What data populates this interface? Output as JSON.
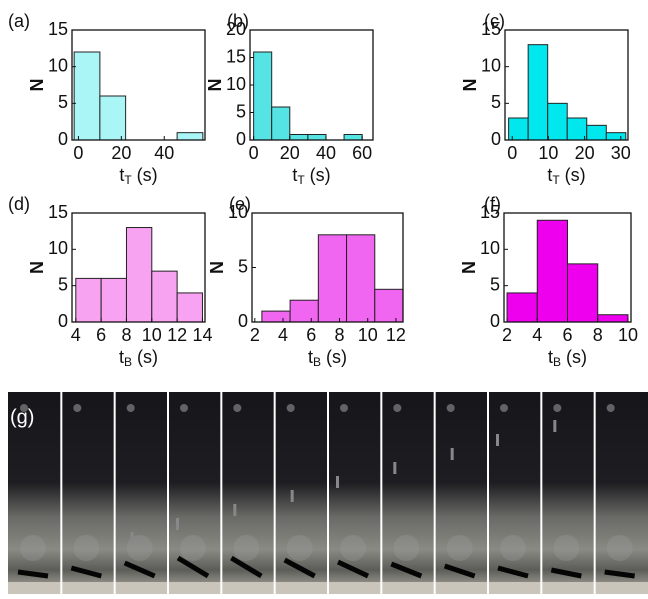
{
  "chart_data": [
    {
      "type": "histogram",
      "panel_label": "(a)",
      "ylabel": "N",
      "xlabel": [
        "t",
        "T",
        " (s)"
      ],
      "color": "#aaf6f6",
      "bins": [
        -2,
        10,
        22,
        34,
        46,
        58
      ],
      "values": [
        12,
        6,
        0,
        0,
        1
      ],
      "xlim": [
        -3,
        59
      ],
      "xticks": [
        0,
        20,
        40
      ],
      "ylim": [
        0,
        15
      ],
      "yticks": [
        0,
        5,
        10,
        15
      ]
    },
    {
      "type": "histogram",
      "panel_label": "(b)",
      "ylabel": "N",
      "xlabel": [
        "t",
        "T",
        " (s)"
      ],
      "color": "#55e3e3",
      "bins": [
        0,
        10,
        20,
        30,
        40,
        50,
        60
      ],
      "values": [
        16,
        6,
        1,
        1,
        0,
        1
      ],
      "xlim": [
        -2,
        66
      ],
      "xticks": [
        0,
        20,
        40,
        60
      ],
      "ylim": [
        0,
        20
      ],
      "yticks": [
        0,
        5,
        10,
        15,
        20
      ]
    },
    {
      "type": "histogram",
      "panel_label": "(c)",
      "ylabel": "N",
      "xlabel": [
        "t",
        "T",
        " (s)"
      ],
      "color": "#00e8ee",
      "bins": [
        -1,
        4.4,
        9.8,
        15.2,
        20.6,
        26,
        31.4
      ],
      "values": [
        3,
        13,
        5,
        3,
        2,
        1
      ],
      "xlim": [
        -2,
        32
      ],
      "xticks": [
        0,
        10,
        20,
        30
      ],
      "ylim": [
        0,
        15
      ],
      "yticks": [
        0,
        5,
        10,
        15
      ]
    },
    {
      "type": "histogram",
      "panel_label": "(d)",
      "ylabel": "N",
      "xlabel": [
        "t",
        "B",
        " (s)"
      ],
      "color": "#f7a3f2",
      "bins": [
        4,
        6,
        8,
        10,
        12,
        14
      ],
      "values": [
        6,
        6,
        13,
        7,
        4
      ],
      "xlim": [
        3.7,
        14.2
      ],
      "xticks": [
        4,
        6,
        8,
        10,
        12,
        14
      ],
      "ylim": [
        0,
        15
      ],
      "yticks": [
        0,
        5,
        10,
        15
      ]
    },
    {
      "type": "histogram",
      "panel_label": "(e)",
      "ylabel": "N",
      "xlabel": [
        "t",
        "B",
        " (s)"
      ],
      "color": "#f066f0",
      "bins": [
        2.5,
        4.5,
        6.5,
        8.5,
        10.5,
        12.5
      ],
      "values": [
        1,
        2,
        8,
        8,
        3
      ],
      "xlim": [
        1.8,
        12.5
      ],
      "xticks": [
        2,
        4,
        6,
        8,
        10,
        12
      ],
      "ylim": [
        0,
        10
      ],
      "yticks": [
        0,
        5,
        10
      ]
    },
    {
      "type": "histogram",
      "panel_label": "(f)",
      "ylabel": "N",
      "xlabel": [
        "t",
        "B",
        " (s)"
      ],
      "color": "#ee00ee",
      "bins": [
        2,
        4,
        6,
        8,
        10
      ],
      "values": [
        4,
        14,
        8,
        1
      ],
      "xlim": [
        1.8,
        10.2
      ],
      "xticks": [
        2,
        4,
        6,
        8,
        10
      ],
      "ylim": [
        0,
        15
      ],
      "yticks": [
        0,
        5,
        10,
        15
      ]
    }
  ],
  "photo": {
    "label": "(g)"
  }
}
